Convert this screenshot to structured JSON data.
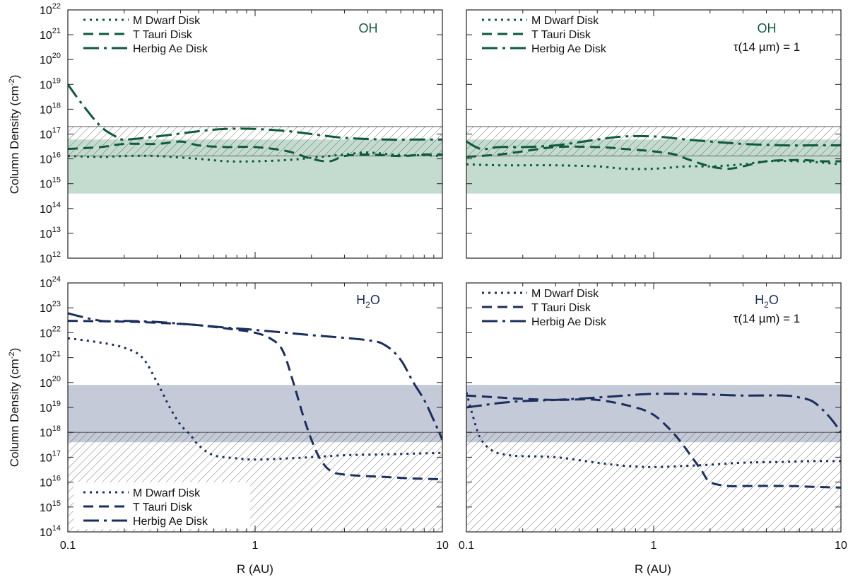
{
  "figure": {
    "colors": {
      "oh": "#0e5a3c",
      "oh_band": "#c4dccf",
      "h2o": "#1a2f5e",
      "h2o_band": "#c4cad8",
      "axis": "#222222",
      "hatch": "#555555"
    },
    "x_label": "R (AU)",
    "y_label_main": "Column Density (cm",
    "y_label_sup": "-2",
    "y_label_tail": ")"
  },
  "chart_data": [
    {
      "id": "oh-left",
      "type": "line",
      "species": "OH",
      "species_base": "OH",
      "species_sub": "",
      "tau_label": "",
      "xscale": "log",
      "yscale": "log",
      "xlim": [
        0.1,
        10
      ],
      "ylim": [
        1000000000000.0,
        1e+22
      ],
      "x_ticks": [
        {
          "v": 0.1,
          "label": "0.1"
        },
        {
          "v": 1,
          "label": "1"
        },
        {
          "v": 10,
          "label": "10"
        }
      ],
      "y_ticks": [
        12,
        13,
        14,
        15,
        16,
        17,
        18,
        19,
        20,
        21,
        22
      ],
      "legend": [
        "M Dwarf Disk",
        "T Tauri Disk",
        "Herbig Ae Disk"
      ],
      "legend_loc": "top-left",
      "shaded_band": [
        400000000000000.0,
        6e+16
      ],
      "hatched_band": [
        1.3e+16,
        2e+17
      ],
      "series": [
        {
          "name": "M Dwarf Disk",
          "style": "dotted",
          "x": [
            0.1,
            0.15,
            0.2,
            0.3,
            0.5,
            0.7,
            1.0,
            1.5,
            2,
            3,
            4,
            6,
            8,
            10
          ],
          "y": [
            1.3e+16,
            1.2e+16,
            1.3e+16,
            1.3e+16,
            1e+16,
            8000000000000000.0,
            8000000000000000.0,
            9000000000000000.0,
            1.1e+16,
            1.5e+16,
            1.8e+16,
            1.4e+16,
            1.4e+16,
            1.3e+16
          ]
        },
        {
          "name": "T Tauri Disk",
          "style": "dashed",
          "x": [
            0.1,
            0.15,
            0.2,
            0.3,
            0.4,
            0.5,
            0.7,
            1.0,
            1.5,
            2.0,
            2.5,
            3,
            4,
            6,
            8,
            10
          ],
          "y": [
            2.5e+16,
            3e+16,
            4e+16,
            4e+16,
            5e+16,
            3.5e+16,
            3e+16,
            3e+16,
            2e+16,
            1e+16,
            8000000000000000.0,
            1.3e+16,
            1.5e+16,
            1.3e+16,
            1.5e+16,
            1.5e+16
          ]
        },
        {
          "name": "Herbig Ae Disk",
          "style": "dashdot",
          "x": [
            0.1,
            0.12,
            0.15,
            0.18,
            0.2,
            0.3,
            0.5,
            0.7,
            1.0,
            1.5,
            2,
            3,
            5,
            7,
            10
          ],
          "y": [
            1e+19,
            1.5e+18,
            2e+17,
            8e+16,
            6e+16,
            8e+16,
            1.3e+17,
            1.6e+17,
            1.6e+17,
            1.3e+17,
            1e+17,
            7e+16,
            6e+16,
            6e+16,
            6e+16
          ]
        }
      ]
    },
    {
      "id": "oh-right",
      "type": "line",
      "species": "OH",
      "species_base": "OH",
      "species_sub": "",
      "tau_label": "τ(14 µm) = 1",
      "xscale": "log",
      "yscale": "log",
      "xlim": [
        0.1,
        10
      ],
      "ylim": [
        1000000000000.0,
        1e+22
      ],
      "x_ticks": [
        {
          "v": 0.1,
          "label": "0.1"
        },
        {
          "v": 1,
          "label": "1"
        },
        {
          "v": 10,
          "label": "10"
        }
      ],
      "y_ticks": [
        12,
        13,
        14,
        15,
        16,
        17,
        18,
        19,
        20,
        21,
        22
      ],
      "legend": [
        "M Dwarf Disk",
        "T Tauri Disk",
        "Herbig Ae Disk"
      ],
      "legend_loc": "top-left",
      "shaded_band": [
        400000000000000.0,
        6e+16
      ],
      "hatched_band": [
        1.3e+16,
        2e+17
      ],
      "series": [
        {
          "name": "M Dwarf Disk",
          "style": "dotted",
          "x": [
            0.1,
            0.15,
            0.2,
            0.3,
            0.5,
            0.7,
            1.0,
            1.5,
            2,
            3,
            4,
            6,
            8,
            10
          ],
          "y": [
            6000000000000000.0,
            5500000000000000.0,
            5500000000000000.0,
            5500000000000000.0,
            5000000000000000.0,
            4000000000000000.0,
            4000000000000000.0,
            5000000000000000.0,
            5000000000000000.0,
            6000000000000000.0,
            8000000000000000.0,
            8000000000000000.0,
            7000000000000000.0,
            6000000000000000.0
          ]
        },
        {
          "name": "T Tauri Disk",
          "style": "dashed",
          "x": [
            0.1,
            0.15,
            0.2,
            0.3,
            0.5,
            0.7,
            1.0,
            1.3,
            1.5,
            2,
            2.5,
            3,
            4,
            6,
            8,
            10
          ],
          "y": [
            1.2e+16,
            1.5e+16,
            2e+16,
            3e+16,
            3e+16,
            2.5e+16,
            2e+16,
            1.5e+16,
            1e+16,
            5000000000000000.0,
            4000000000000000.0,
            5000000000000000.0,
            8000000000000000.0,
            9000000000000000.0,
            8000000000000000.0,
            8000000000000000.0
          ]
        },
        {
          "name": "Herbig Ae Disk",
          "style": "dashdot",
          "x": [
            0.1,
            0.12,
            0.15,
            0.2,
            0.3,
            0.5,
            0.7,
            1.0,
            1.5,
            2,
            3,
            5,
            7,
            10
          ],
          "y": [
            5e+16,
            2.5e+16,
            3e+16,
            3e+16,
            3.5e+16,
            6e+16,
            8e+16,
            8e+16,
            6e+16,
            5e+16,
            4e+16,
            3.5e+16,
            3.5e+16,
            3.5e+16
          ]
        }
      ]
    },
    {
      "id": "h2o-left",
      "type": "line",
      "species": "H2O",
      "species_base": "H",
      "species_sub": "2",
      "species_tail": "O",
      "tau_label": "",
      "xscale": "log",
      "yscale": "log",
      "xlim": [
        0.1,
        10
      ],
      "ylim": [
        100000000000000.0,
        1e+24
      ],
      "x_ticks": [
        {
          "v": 0.1,
          "label": "0.1"
        },
        {
          "v": 1,
          "label": "1"
        },
        {
          "v": 10,
          "label": "10"
        }
      ],
      "y_ticks": [
        14,
        15,
        16,
        17,
        18,
        19,
        20,
        21,
        22,
        23,
        24
      ],
      "legend": [
        "M Dwarf Disk",
        "T Tauri Disk",
        "Herbig Ae Disk"
      ],
      "legend_loc": "bottom-left",
      "shaded_band": [
        4e+17,
        8e+19
      ],
      "hatched_band": [
        100000000000000.0,
        1e+18
      ],
      "series": [
        {
          "name": "M Dwarf Disk",
          "style": "dotted",
          "x": [
            0.1,
            0.15,
            0.2,
            0.25,
            0.3,
            0.35,
            0.4,
            0.45,
            0.5,
            0.6,
            0.8,
            1.0,
            1.5,
            2,
            3,
            5,
            7,
            10
          ],
          "y": [
            6e+21,
            4e+21,
            2.5e+21,
            1e+21,
            1e+20,
            1e+19,
            2e+18,
            8e+17,
            3e+17,
            1.2e+17,
            9e+16,
            8e+16,
            9e+16,
            1e+17,
            1.2e+17,
            1.3e+17,
            1.4e+17,
            1.5e+17
          ]
        },
        {
          "name": "T Tauri Disk",
          "style": "dashed",
          "x": [
            0.1,
            0.2,
            0.3,
            0.5,
            0.8,
            1.0,
            1.2,
            1.4,
            1.6,
            1.8,
            2.0,
            2.2,
            2.5,
            3,
            5,
            7,
            10
          ],
          "y": [
            3e+22,
            2.8e+22,
            2.5e+22,
            2e+22,
            1.3e+22,
            1e+22,
            6e+21,
            2e+21,
            1e+20,
            5e+18,
            5e+17,
            1e+17,
            3e+16,
            2e+16,
            1.6e+16,
            1.4e+16,
            1.3e+16
          ]
        },
        {
          "name": "Herbig Ae Disk",
          "style": "dashdot",
          "x": [
            0.1,
            0.15,
            0.2,
            0.3,
            0.5,
            0.7,
            1.0,
            2,
            4,
            5,
            6,
            7,
            8,
            9,
            10
          ],
          "y": [
            6e+22,
            3e+22,
            3e+22,
            2.7e+22,
            2e+22,
            1.6e+22,
            1.3e+22,
            8e+21,
            5e+21,
            3e+21,
            8e+20,
            1e+20,
            2e+19,
            3e+18,
            5e+17
          ]
        }
      ]
    },
    {
      "id": "h2o-right",
      "type": "line",
      "species": "H2O",
      "species_base": "H",
      "species_sub": "2",
      "species_tail": "O",
      "tau_label": "τ(14 µm) = 1",
      "xscale": "log",
      "yscale": "log",
      "xlim": [
        0.1,
        10
      ],
      "ylim": [
        100000000000000.0,
        1e+24
      ],
      "x_ticks": [
        {
          "v": 0.1,
          "label": "0.1"
        },
        {
          "v": 1,
          "label": "1"
        },
        {
          "v": 10,
          "label": "10"
        }
      ],
      "y_ticks": [
        14,
        15,
        16,
        17,
        18,
        19,
        20,
        21,
        22,
        23,
        24
      ],
      "legend": [
        "M Dwarf Disk",
        "T Tauri Disk",
        "Herbig Ae Disk"
      ],
      "legend_loc": "top-left",
      "shaded_band": [
        4e+17,
        8e+19
      ],
      "hatched_band": [
        100000000000000.0,
        1e+18
      ],
      "series": [
        {
          "name": "M Dwarf Disk",
          "style": "dotted",
          "x": [
            0.1,
            0.11,
            0.12,
            0.14,
            0.17,
            0.2,
            0.3,
            0.5,
            0.7,
            1.0,
            1.5,
            2,
            3,
            5,
            7,
            10
          ],
          "y": [
            4e+19,
            3e+18,
            5e+17,
            1.7e+17,
            1.2e+17,
            1.1e+17,
            1e+17,
            6e+16,
            4.5e+16,
            4e+16,
            4.5e+16,
            5e+16,
            6e+16,
            6.5e+16,
            7e+16,
            7e+16
          ]
        },
        {
          "name": "T Tauri Disk",
          "style": "dashed",
          "x": [
            0.1,
            0.15,
            0.2,
            0.3,
            0.5,
            0.8,
            1.0,
            1.2,
            1.4,
            1.6,
            1.8,
            2.0,
            2.5,
            3,
            5,
            7,
            10
          ],
          "y": [
            3e+19,
            2.5e+19,
            2.2e+19,
            2e+19,
            2e+19,
            1e+19,
            5e+18,
            1.5e+18,
            4e+17,
            1e+17,
            3e+16,
            1e+16,
            7000000000000000.0,
            7000000000000000.0,
            7000000000000000.0,
            6500000000000000.0,
            6000000000000000.0
          ]
        },
        {
          "name": "Herbig Ae Disk",
          "style": "dashdot",
          "x": [
            0.1,
            0.12,
            0.15,
            0.2,
            0.3,
            0.5,
            0.7,
            1.0,
            1.5,
            2,
            3,
            5,
            6,
            7,
            8,
            9,
            10
          ],
          "y": [
            1e+19,
            1.2e+19,
            1.5e+19,
            1.8e+19,
            2e+19,
            2.5e+19,
            3e+19,
            3.5e+19,
            3.5e+19,
            3.3e+19,
            3e+19,
            3e+19,
            2.5e+19,
            1.8e+19,
            8e+18,
            3e+18,
            1e+18
          ]
        }
      ]
    }
  ]
}
